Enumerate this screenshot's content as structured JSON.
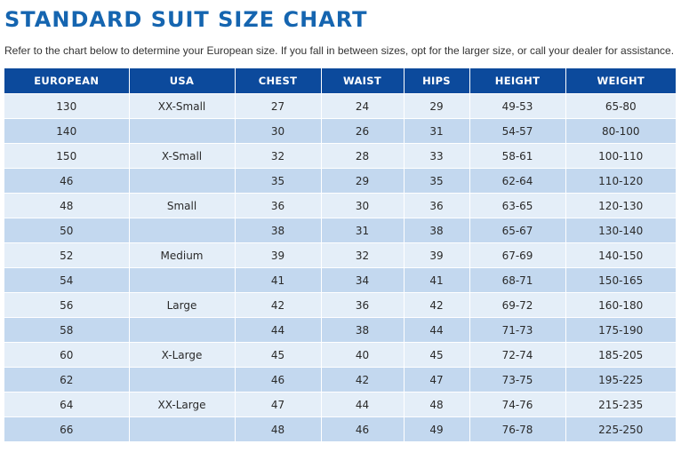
{
  "title": "STANDARD SUIT SIZE CHART",
  "intro": "Refer to the chart below to determine your European size. If you fall in between sizes, opt for the larger size, or call your dealer for assistance.",
  "colors": {
    "title": "#1565b0",
    "header_bg": "#0c4a9c",
    "row_light": "#e4eef8",
    "row_dark": "#c3d8ef"
  },
  "table": {
    "headers": [
      "EUROPEAN",
      "USA",
      "CHEST",
      "WAIST",
      "HIPS",
      "HEIGHT",
      "WEIGHT"
    ],
    "rows": [
      [
        "130",
        "XX-Small",
        "27",
        "24",
        "29",
        "49-53",
        "65-80"
      ],
      [
        "140",
        "",
        "30",
        "26",
        "31",
        "54-57",
        "80-100"
      ],
      [
        "150",
        "X-Small",
        "32",
        "28",
        "33",
        "58-61",
        "100-110"
      ],
      [
        "46",
        "",
        "35",
        "29",
        "35",
        "62-64",
        "110-120"
      ],
      [
        "48",
        "Small",
        "36",
        "30",
        "36",
        "63-65",
        "120-130"
      ],
      [
        "50",
        "",
        "38",
        "31",
        "38",
        "65-67",
        "130-140"
      ],
      [
        "52",
        "Medium",
        "39",
        "32",
        "39",
        "67-69",
        "140-150"
      ],
      [
        "54",
        "",
        "41",
        "34",
        "41",
        "68-71",
        "150-165"
      ],
      [
        "56",
        "Large",
        "42",
        "36",
        "42",
        "69-72",
        "160-180"
      ],
      [
        "58",
        "",
        "44",
        "38",
        "44",
        "71-73",
        "175-190"
      ],
      [
        "60",
        "X-Large",
        "45",
        "40",
        "45",
        "72-74",
        "185-205"
      ],
      [
        "62",
        "",
        "46",
        "42",
        "47",
        "73-75",
        "195-225"
      ],
      [
        "64",
        "XX-Large",
        "47",
        "44",
        "48",
        "74-76",
        "215-235"
      ],
      [
        "66",
        "",
        "48",
        "46",
        "49",
        "76-78",
        "225-250"
      ]
    ]
  }
}
